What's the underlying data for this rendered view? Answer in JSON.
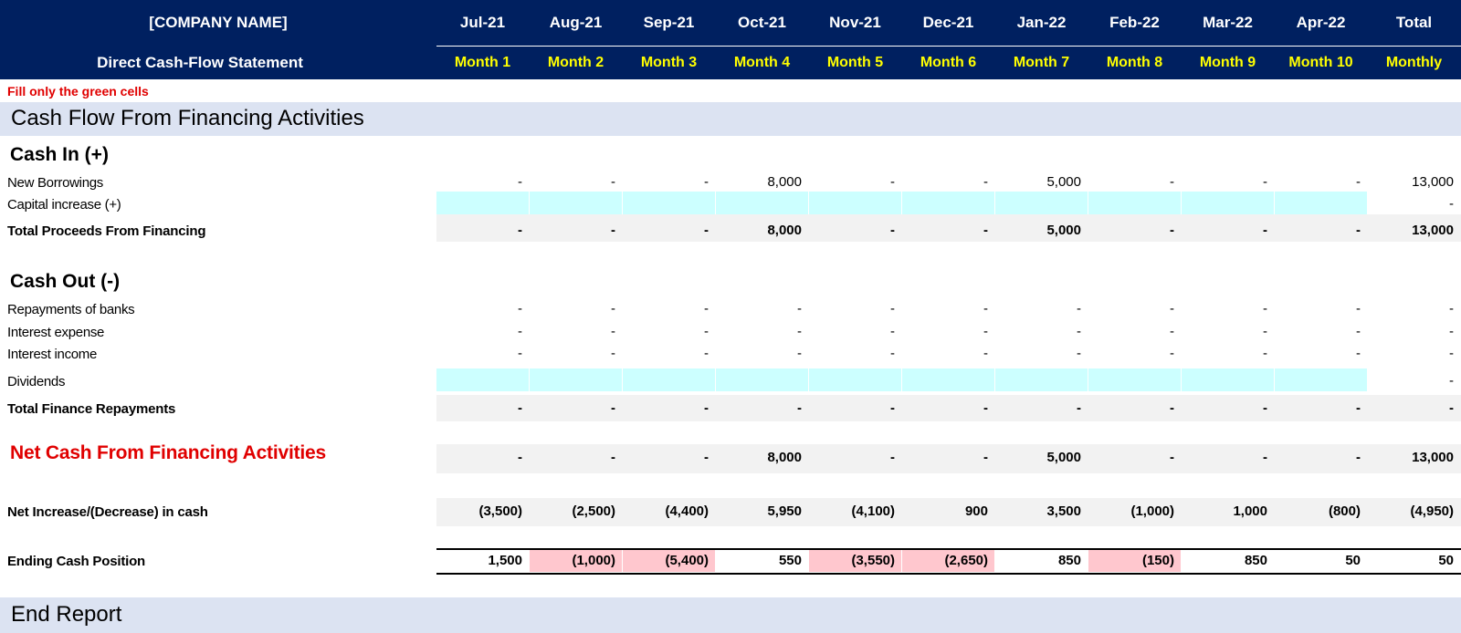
{
  "header": {
    "company": "[COMPANY NAME]",
    "statement": "Direct Cash-Flow Statement",
    "months": [
      "Jul-21",
      "Aug-21",
      "Sep-21",
      "Oct-21",
      "Nov-21",
      "Dec-21",
      "Jan-22",
      "Feb-22",
      "Mar-22",
      "Apr-22",
      "Total"
    ],
    "month_nums": [
      "Month 1",
      "Month 2",
      "Month 3",
      "Month 4",
      "Month 5",
      "Month 6",
      "Month 7",
      "Month 8",
      "Month 9",
      "Month 10",
      "Monthly"
    ]
  },
  "note": "Fill only the green cells",
  "sections": {
    "financing_title": "Cash Flow From Financing Activities",
    "cash_in": "Cash In (+)",
    "cash_out": "Cash Out (-)",
    "end_report": "End Report"
  },
  "rows": {
    "new_borrowings": {
      "label": "New Borrowings",
      "values": [
        "-",
        "-",
        "-",
        "8,000",
        "-",
        "-",
        "5,000",
        "-",
        "-",
        "-",
        "13,000"
      ]
    },
    "capital_increase": {
      "label": "Capital increase (+)",
      "values": [
        "",
        "",
        "",
        "",
        "",
        "",
        "",
        "",
        "",
        "",
        "-"
      ]
    },
    "total_proceeds": {
      "label": "Total Proceeds From Financing",
      "values": [
        "-",
        "-",
        "-",
        "8,000",
        "-",
        "-",
        "5,000",
        "-",
        "-",
        "-",
        "13,000"
      ]
    },
    "repayments": {
      "label": "Repayments of banks",
      "values": [
        "-",
        "-",
        "-",
        "-",
        "-",
        "-",
        "-",
        "-",
        "-",
        "-",
        "-"
      ]
    },
    "interest_expense": {
      "label": "Interest expense",
      "values": [
        "-",
        "-",
        "-",
        "-",
        "-",
        "-",
        "-",
        "-",
        "-",
        "-",
        "-"
      ]
    },
    "interest_income": {
      "label": "Interest income",
      "values": [
        "-",
        "-",
        "-",
        "-",
        "-",
        "-",
        "-",
        "-",
        "-",
        "-",
        "-"
      ]
    },
    "dividends": {
      "label": "Dividends",
      "values": [
        "",
        "",
        "",
        "",
        "",
        "",
        "",
        "",
        "",
        "",
        "-"
      ]
    },
    "total_repayments": {
      "label": "Total Finance Repayments",
      "values": [
        "-",
        "-",
        "-",
        "-",
        "-",
        "-",
        "-",
        "-",
        "-",
        "-",
        "-"
      ]
    },
    "net_financing": {
      "label": "Net Cash From Financing Activities",
      "values": [
        "-",
        "-",
        "-",
        "8,000",
        "-",
        "-",
        "5,000",
        "-",
        "-",
        "-",
        "13,000"
      ]
    },
    "net_increase": {
      "label": "Net Increase/(Decrease) in cash",
      "values": [
        "(3,500)",
        "(2,500)",
        "(4,400)",
        "5,950",
        "(4,100)",
        "900",
        "3,500",
        "(1,000)",
        "1,000",
        "(800)",
        "(4,950)"
      ]
    },
    "ending_cash": {
      "label": "Ending Cash Position",
      "values": [
        "1,500",
        "(1,000)",
        "(5,400)",
        "550",
        "(3,550)",
        "(2,650)",
        "850",
        "(150)",
        "850",
        "50",
        "50"
      ]
    }
  },
  "colors": {
    "header_bg": "#002060",
    "header_sub": "#ffff00",
    "input_cell": "#ccffff",
    "negative_cell": "#ffc7ce",
    "section_band": "#dce3f2",
    "highlight_red": "#e00000"
  }
}
